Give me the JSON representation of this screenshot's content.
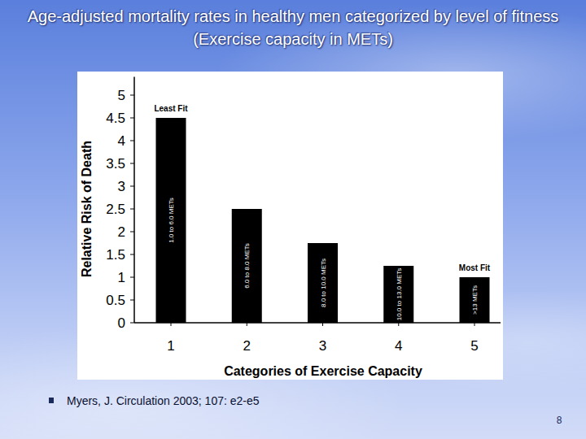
{
  "chart_data": {
    "type": "bar",
    "title": "Age-adjusted mortality rates in healthy men categorized by level of fitness (Exercise capacity in METs)",
    "y_label": "Relative Risk of Death",
    "x_label": "Categories of Exercise Capacity",
    "categories": [
      "1",
      "2",
      "3",
      "4",
      "5"
    ],
    "values": [
      4.5,
      2.5,
      1.75,
      1.25,
      1.0
    ],
    "bar_labels": [
      "1.0 to 6.0 METs",
      "6.0 to 8.0 METs",
      "8.0 to 10.0 METs",
      "10.0 to 13.0 METs",
      ">13 METs"
    ],
    "annotations": [
      {
        "text": "Least Fit",
        "category": "1"
      },
      {
        "text": "Most Fit",
        "category": "5"
      }
    ],
    "color": "#000000",
    "ylim": [
      0,
      5.4
    ],
    "yticks": [
      0,
      0.5,
      1,
      1.5,
      2,
      2.5,
      3,
      3.5,
      4,
      4.5,
      5
    ],
    "grid": false
  },
  "slide": {
    "source": "Myers, J. Circulation 2003; 107: e2-e5",
    "page_number": "8"
  }
}
